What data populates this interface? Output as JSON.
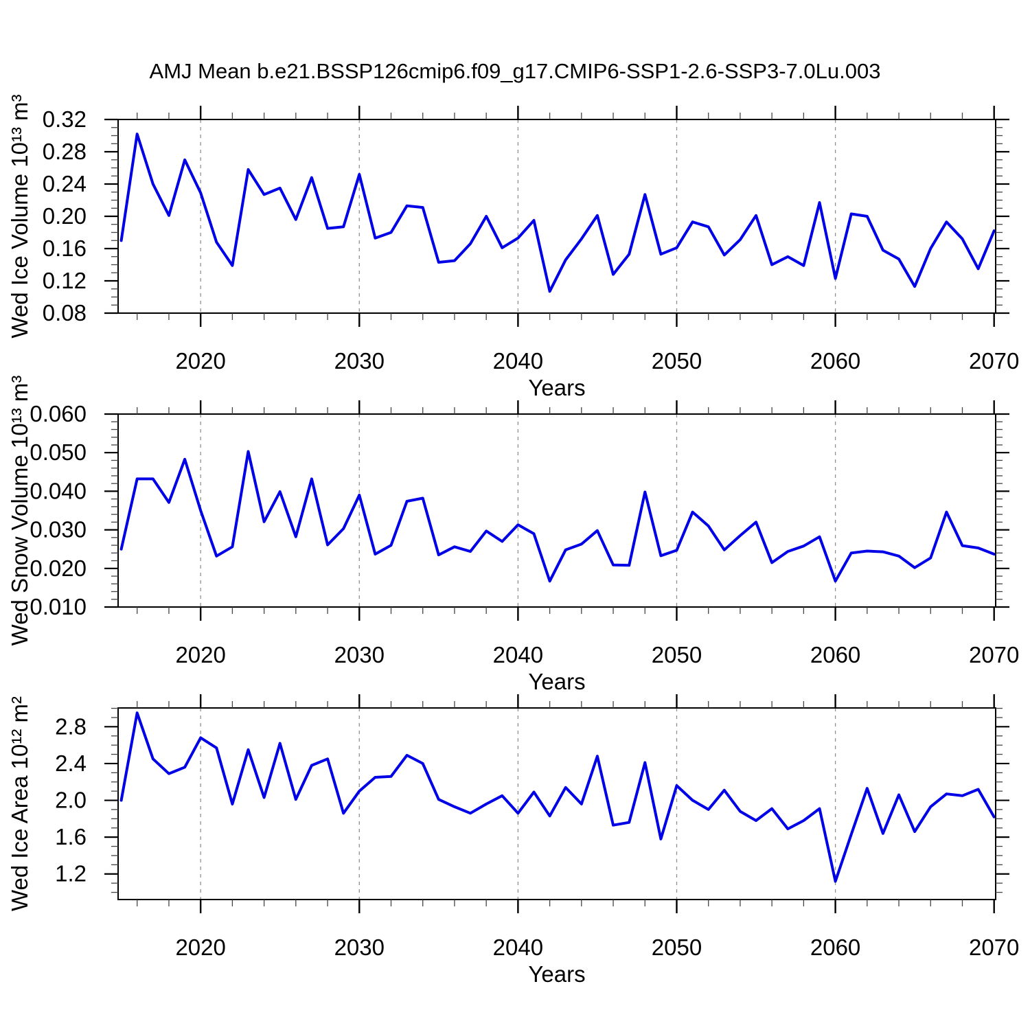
{
  "title": "AMJ Mean b.e21.BSSP126cmip6.f09_g17.CMIP6-SSP1-2.6-SSP3-7.0Lu.003",
  "style": {
    "line_color": "#0000e6",
    "grid_color": "#909090",
    "axis_color": "#000000",
    "background": "#ffffff"
  },
  "x_axis": {
    "label": "Years",
    "xlim": [
      2014.8,
      2070.1
    ],
    "major_tick_years": [
      2020,
      2030,
      2040,
      2050,
      2060,
      2070
    ],
    "major_tick_labels": [
      "2020",
      "2030",
      "2040",
      "2050",
      "2060",
      "2070"
    ],
    "minor_tick_step_years": 2,
    "grid_years": [
      2020,
      2030,
      2040,
      2050,
      2060
    ],
    "years": [
      2015,
      2016,
      2017,
      2018,
      2019,
      2020,
      2021,
      2022,
      2023,
      2024,
      2025,
      2026,
      2027,
      2028,
      2029,
      2030,
      2031,
      2032,
      2033,
      2034,
      2035,
      2036,
      2037,
      2038,
      2039,
      2040,
      2041,
      2042,
      2043,
      2044,
      2045,
      2046,
      2047,
      2048,
      2049,
      2050,
      2051,
      2052,
      2053,
      2054,
      2055,
      2056,
      2057,
      2058,
      2059,
      2060,
      2061,
      2062,
      2063,
      2064,
      2065,
      2066,
      2067,
      2068,
      2069,
      2070
    ]
  },
  "chart_data": [
    {
      "type": "line",
      "name": "wed-ice-volume",
      "ylabel": "Wed Ice Volume 10¹³ m³",
      "xlabel": "Years",
      "ylim": [
        0.08,
        0.32
      ],
      "ytick_values": [
        0.08,
        0.12,
        0.16,
        0.2,
        0.24,
        0.28,
        0.32
      ],
      "ytick_labels": [
        "0.08",
        "0.12",
        "0.16",
        "0.20",
        "0.24",
        "0.28",
        "0.32"
      ],
      "y_minor_step": 0.01,
      "grid": "vertical-dashed-decades",
      "values": [
        0.17,
        0.302,
        0.24,
        0.201,
        0.27,
        0.229,
        0.168,
        0.139,
        0.258,
        0.227,
        0.235,
        0.196,
        0.248,
        0.185,
        0.187,
        0.252,
        0.173,
        0.18,
        0.213,
        0.211,
        0.143,
        0.145,
        0.166,
        0.2,
        0.161,
        0.173,
        0.195,
        0.107,
        0.146,
        0.172,
        0.201,
        0.128,
        0.153,
        0.227,
        0.153,
        0.161,
        0.193,
        0.187,
        0.152,
        0.171,
        0.201,
        0.14,
        0.15,
        0.139,
        0.217,
        0.123,
        0.203,
        0.2,
        0.158,
        0.147,
        0.113,
        0.16,
        0.193,
        0.172,
        0.135,
        0.182
      ]
    },
    {
      "type": "line",
      "name": "wed-snow-volume",
      "ylabel": "Wed Snow Volume 10¹³ m³",
      "xlabel": "Years",
      "ylim": [
        0.01,
        0.06
      ],
      "ytick_values": [
        0.01,
        0.02,
        0.03,
        0.04,
        0.05,
        0.06
      ],
      "ytick_labels": [
        "0.010",
        "0.020",
        "0.030",
        "0.040",
        "0.050",
        "0.060"
      ],
      "y_minor_step": 0.002,
      "grid": "vertical-dashed-decades",
      "values": [
        0.025,
        0.0432,
        0.0432,
        0.0371,
        0.0483,
        0.035,
        0.0232,
        0.0256,
        0.0503,
        0.0321,
        0.0399,
        0.0282,
        0.0432,
        0.0261,
        0.0303,
        0.039,
        0.0237,
        0.026,
        0.0374,
        0.0382,
        0.0235,
        0.0256,
        0.0244,
        0.0297,
        0.027,
        0.0313,
        0.029,
        0.0167,
        0.0248,
        0.0263,
        0.0298,
        0.0209,
        0.0208,
        0.0398,
        0.0233,
        0.0247,
        0.0346,
        0.031,
        0.0248,
        0.0285,
        0.032,
        0.0215,
        0.0244,
        0.0258,
        0.0282,
        0.0167,
        0.024,
        0.0245,
        0.0243,
        0.0232,
        0.0202,
        0.0227,
        0.0346,
        0.0259,
        0.0253,
        0.0237
      ]
    },
    {
      "type": "line",
      "name": "wed-ice-area",
      "ylabel": "Wed Ice Area 10¹² m²",
      "xlabel": "Years",
      "ylim": [
        0.922,
        3.004
      ],
      "ytick_values": [
        1.2,
        1.6,
        2.0,
        2.4,
        2.8
      ],
      "ytick_labels": [
        "1.2",
        "1.6",
        "2.0",
        "2.4",
        "2.8"
      ],
      "y_minor_step": 0.1,
      "grid": "vertical-dashed-decades",
      "values": [
        2.0,
        2.95,
        2.45,
        2.29,
        2.36,
        2.68,
        2.57,
        1.96,
        2.55,
        2.03,
        2.62,
        2.01,
        2.38,
        2.45,
        1.86,
        2.1,
        2.25,
        2.26,
        2.49,
        2.4,
        2.01,
        1.93,
        1.86,
        1.96,
        2.05,
        1.86,
        2.09,
        1.83,
        2.14,
        1.96,
        2.48,
        1.73,
        1.76,
        2.41,
        1.58,
        2.16,
        2.0,
        1.9,
        2.11,
        1.88,
        1.78,
        1.91,
        1.69,
        1.78,
        1.91,
        1.12,
        1.63,
        2.13,
        1.64,
        2.06,
        1.66,
        1.93,
        2.07,
        2.05,
        2.12,
        1.82
      ]
    }
  ]
}
